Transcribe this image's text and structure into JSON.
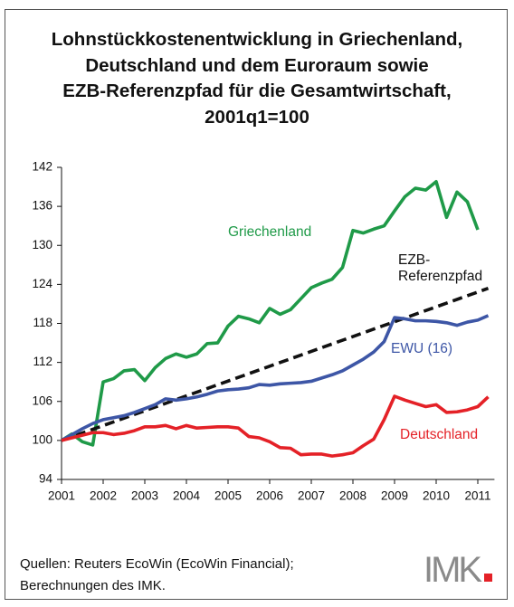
{
  "chart_data": {
    "type": "line",
    "title": "Lohnstückkostenentwicklung in Griechenland,\nDeutschland und dem Euroraum sowie\nEZB-Referenzpfad für die Gesamtwirtschaft,\n2001q1=100",
    "x": [
      2001,
      2001.25,
      2001.5,
      2001.75,
      2002,
      2002.25,
      2002.5,
      2002.75,
      2003,
      2003.25,
      2003.5,
      2003.75,
      2004,
      2004.25,
      2004.5,
      2004.75,
      2005,
      2005.25,
      2005.5,
      2005.75,
      2006,
      2006.25,
      2006.5,
      2006.75,
      2007,
      2007.25,
      2007.5,
      2007.75,
      2008,
      2008.25,
      2008.5,
      2008.75,
      2009,
      2009.25,
      2009.5,
      2009.75,
      2010,
      2010.25,
      2010.5,
      2010.75,
      2011,
      2011.25
    ],
    "series": [
      {
        "name": "Griechenland",
        "color": "#1f9a48",
        "values": [
          100,
          101,
          99.8,
          99.3,
          109,
          109.5,
          110.7,
          110.9,
          109.2,
          111.2,
          112.6,
          113.3,
          112.8,
          113.3,
          114.9,
          115,
          117.6,
          119.1,
          118.7,
          118.1,
          120.3,
          119.4,
          120.1,
          121.8,
          123.5,
          124.2,
          124.8,
          126.6,
          132.3,
          131.9,
          132.5,
          133,
          135.3,
          137.5,
          138.8,
          138.5,
          139.8,
          134.3,
          138.2,
          136.7,
          132.4,
          null
        ]
      },
      {
        "name": "EZB-Referenzpfad",
        "color": "#111111",
        "dashed": true,
        "x": [
          2001,
          2011.25
        ],
        "values": [
          100,
          123.4
        ]
      },
      {
        "name": "EWU (16)",
        "color": "#3d56a6",
        "values": [
          100,
          100.9,
          101.8,
          102.6,
          103.2,
          103.5,
          103.8,
          104.3,
          104.9,
          105.5,
          106.4,
          106.2,
          106.4,
          106.7,
          107.1,
          107.6,
          107.8,
          107.9,
          108.1,
          108.6,
          108.5,
          108.7,
          108.8,
          108.9,
          109.1,
          109.6,
          110.1,
          110.7,
          111.6,
          112.5,
          113.6,
          115.2,
          118.9,
          118.7,
          118.4,
          118.4,
          118.3,
          118.1,
          117.7,
          118.2,
          118.5,
          119.2
        ]
      },
      {
        "name": "Deutschland",
        "color": "#e42127",
        "values": [
          100,
          100.4,
          100.8,
          101.2,
          101.2,
          100.9,
          101.1,
          101.5,
          102.1,
          102.1,
          102.3,
          101.8,
          102.3,
          101.9,
          102,
          102.1,
          102.1,
          101.9,
          100.6,
          100.4,
          99.8,
          98.9,
          98.8,
          97.8,
          97.9,
          97.9,
          97.6,
          97.8,
          98.1,
          99.2,
          100.2,
          103.2,
          106.8,
          106.2,
          105.7,
          105.2,
          105.5,
          104.3,
          104.4,
          104.7,
          105.2,
          106.7
        ]
      }
    ],
    "xlim": [
      2001,
      2011.4
    ],
    "xticks": [
      2001,
      2002,
      2003,
      2004,
      2005,
      2006,
      2007,
      2008,
      2009,
      2010,
      2011
    ],
    "ylim": [
      94,
      142
    ],
    "yticks": [
      94,
      100,
      106,
      112,
      118,
      124,
      130,
      136,
      142
    ],
    "source": "Quellen: Reuters EcoWin (EcoWin Financial);\nBerechnungen des IMK.",
    "logo": "IMK"
  }
}
